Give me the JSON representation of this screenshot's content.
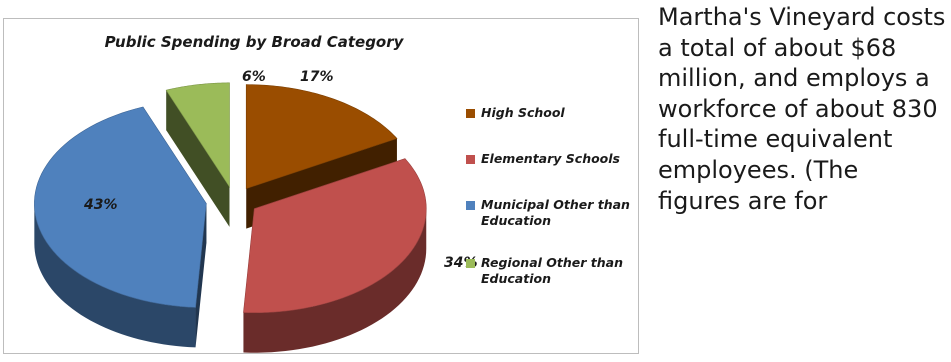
{
  "chart_data": {
    "type": "pie",
    "title": "Public Spending by Broad Category",
    "style": "3d-exploded",
    "legend_position": "right",
    "slices": [
      {
        "label": "High School",
        "value": 17,
        "display": "17%",
        "color": "#9a4d00"
      },
      {
        "label": "Elementary Schools",
        "value": 34,
        "display": "34%",
        "color": "#c0504d"
      },
      {
        "label": "Municipal Other than Education",
        "value": 43,
        "display": "43%",
        "color": "#4f81bd"
      },
      {
        "label": "Regional Other than Education",
        "value": 6,
        "display": "6%",
        "color": "#9bbb59"
      }
    ]
  },
  "side_text": "Martha's Vineyard costs a total of about $68 million, and employs a workforce of about 830 full-time equivalent employees. (The figures are for"
}
